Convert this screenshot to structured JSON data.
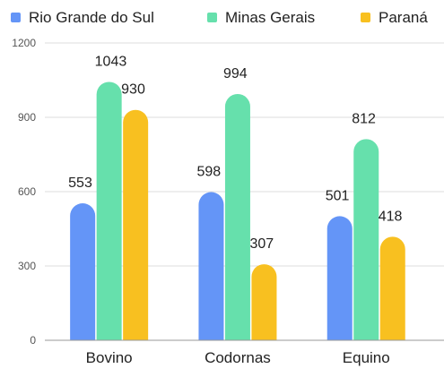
{
  "chart_data": {
    "type": "bar",
    "categories": [
      "Bovino",
      "Codornas",
      "Equino"
    ],
    "series": [
      {
        "name": "Rio Grande do Sul",
        "color": "#6495f7",
        "values": [
          553,
          598,
          501
        ]
      },
      {
        "name": "Minas Gerais",
        "color": "#66e0ac",
        "values": [
          1043,
          994,
          812
        ]
      },
      {
        "name": "Paraná",
        "color": "#f8c020",
        "values": [
          930,
          307,
          418
        ]
      }
    ],
    "ylim": [
      0,
      1200
    ],
    "yticks": [
      0,
      300,
      600,
      900,
      1200
    ],
    "grid": true,
    "legend": "top",
    "title": "",
    "xlabel": "",
    "ylabel": ""
  }
}
